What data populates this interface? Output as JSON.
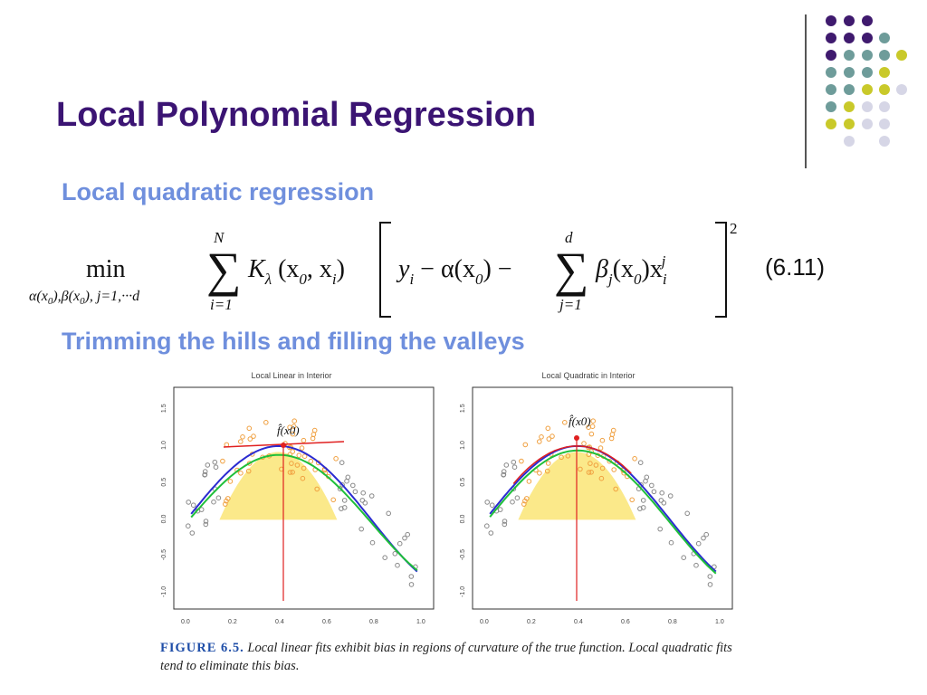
{
  "title": "Local Polynomial Regression",
  "subtitle1": "Local quadratic regression",
  "equation": {
    "minimize": "min",
    "minimize_subscript": "α(x0),β(x0), j=1,···d",
    "sum_outer": {
      "upper": "N",
      "lower": "i=1"
    },
    "kernel": "Kλ(x0, xi)",
    "response": "yi − α(x0) −",
    "sum_inner": {
      "upper": "d",
      "lower": "j=1"
    },
    "basis_term": "βj(x0) xi^j",
    "exponent": "2",
    "number": "(6.11)"
  },
  "subtitle2": "Trimming the hills and filling the valleys",
  "figure": {
    "left_panel_title": "Local Linear in Interior",
    "right_panel_title": "Local Quadratic in Interior",
    "point_label": "f̂(x0)",
    "x_ticks": [
      "0.0",
      "0.2",
      "0.4",
      "0.6",
      "0.8",
      "1.0"
    ],
    "y_ticks": [
      "1.5",
      "1.0",
      "0.5",
      "0.0",
      "-0.5",
      "-1.0"
    ],
    "caption_label": "FIGURE 6.5.",
    "caption_text": "Local linear fits exhibit bias in regions of curvature of the true function. Local quadratic fits tend to eliminate this bias.",
    "colors": {
      "kernel_fill": "#fbe98a",
      "true_function": "#2b2bd1",
      "fit": "#1fbf3a",
      "local_line": "#e02020",
      "in_window_points": "#f0a040",
      "out_window_points": "#888888"
    }
  },
  "decor": {
    "dot_colors": [
      "#3f1a6e",
      "#6e9c9a",
      "#c9c92a",
      "#d6d6e6"
    ]
  }
}
